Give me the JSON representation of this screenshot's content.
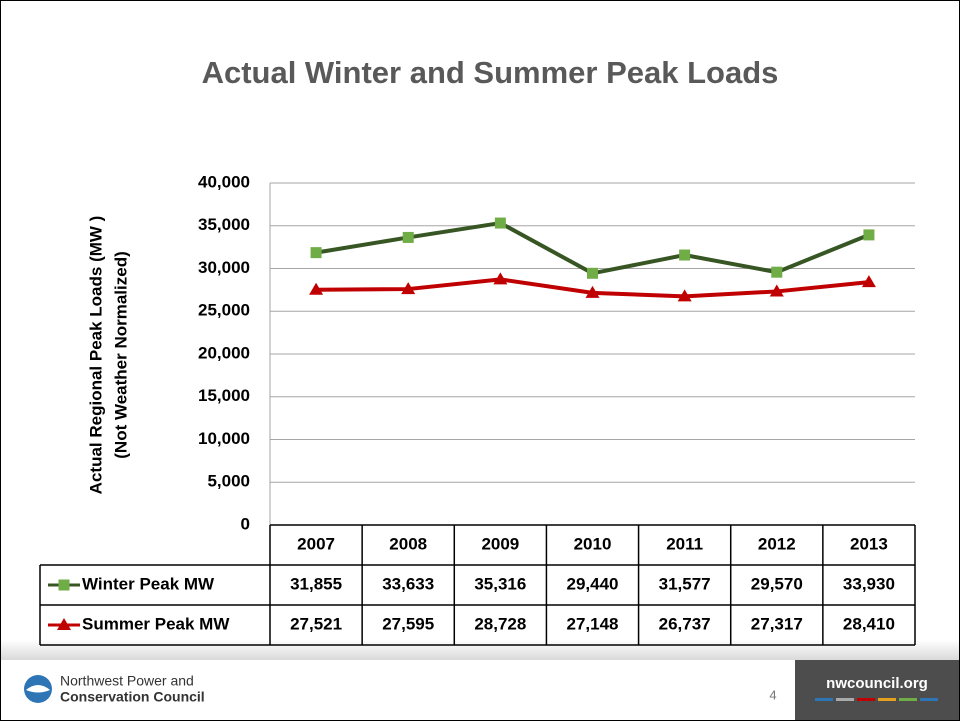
{
  "chart_data": {
    "type": "line",
    "title": "Actual Winter and Summer Peak Loads",
    "y_label": [
      "Actual Regional Peak Loads  (MW )",
      "(Not Weather Normalized)"
    ],
    "categories": [
      "2007",
      "2008",
      "2009",
      "2010",
      "2011",
      "2012",
      "2013"
    ],
    "series": [
      {
        "name": "Winter Peak MW",
        "color": "#375623",
        "marker_color": "#70ad47",
        "marker": "square",
        "values": [
          31855,
          33633,
          35316,
          29440,
          31577,
          29570,
          33930
        ],
        "value_labels": [
          "31,855",
          "33,633",
          "35,316",
          "29,440",
          "31,577",
          "29,570",
          "33,930"
        ]
      },
      {
        "name": "Summer Peak MW",
        "color": "#c00000",
        "marker_color": "#c00000",
        "marker": "triangle",
        "values": [
          27521,
          27595,
          28728,
          27148,
          26737,
          27317,
          28410
        ],
        "value_labels": [
          "27,521",
          "27,595",
          "28,728",
          "27,148",
          "26,737",
          "27,317",
          "28,410"
        ]
      }
    ],
    "ylim": [
      0,
      40000
    ],
    "yticks": [
      0,
      {
        "value": 5000,
        "label": "5,000"
      },
      {
        "value": 10000,
        "label": "10,000"
      },
      {
        "value": 15000,
        "label": "15,000"
      },
      {
        "value": 20000,
        "label": "20,000"
      },
      {
        "value": 25000,
        "label": "25,000"
      },
      {
        "value": 30000,
        "label": "30,000"
      },
      {
        "value": 35000,
        "label": "35,000"
      },
      {
        "value": 40000,
        "label": "40,000"
      }
    ],
    "grid": true
  },
  "footer": {
    "logo_text": [
      "Northwest Power and",
      "Conservation Council"
    ],
    "page_number": "4",
    "website": "nwcouncil.org"
  }
}
